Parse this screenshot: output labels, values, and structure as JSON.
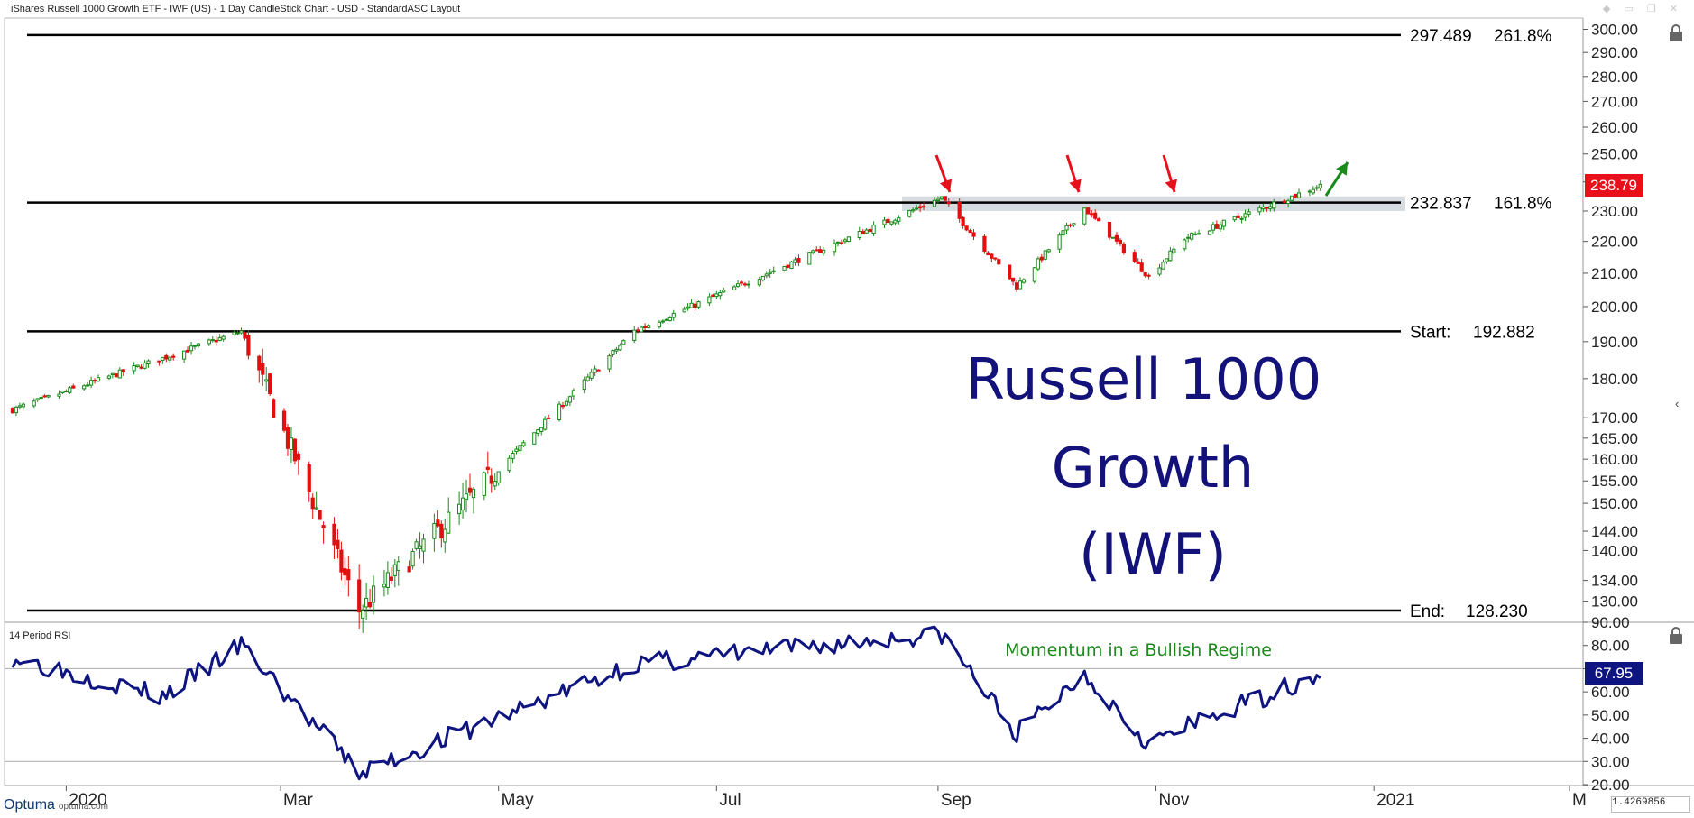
{
  "header": {
    "title": "iShares Russell 1000 Growth ETF - IWF (US) - 1 Day CandleStick Chart - USD - StandardASC Layout"
  },
  "colors": {
    "up": "#1a8a1a",
    "down": "#e01010",
    "rsi": "#0f1580",
    "title": "#12127a",
    "price_tag": "#e8101a",
    "rsi_tag": "#0f1580",
    "annotation_green": "#1a8a1a",
    "arrow_red": "#e8101a"
  },
  "icons": [
    "lock-icon",
    "collapse-arrow-icon",
    "optuma-logo-icon"
  ],
  "branding": {
    "logo": "Optuma",
    "site": "optuma.com"
  },
  "zoom_field": {
    "value": "1.4269856"
  },
  "chart_data": [
    {
      "type": "candlestick",
      "title_lines": [
        "Russell 1000",
        "Growth",
        "(IWF)"
      ],
      "y_scale": "log",
      "ylim": [
        125,
        301
      ],
      "y_ticks": [
        "300.00",
        "290.00",
        "280.00",
        "270.00",
        "260.00",
        "250.00",
        "240.00",
        "230.00",
        "220.00",
        "210.00",
        "200.00",
        "190.00",
        "180.00",
        "170.00",
        "165.00",
        "160.00",
        "155.00",
        "150.00",
        "144.00",
        "140.00",
        "134.00",
        "130.00"
      ],
      "x_ticks": [
        "2020",
        "Mar",
        "May",
        "Jul",
        "Sep",
        "Nov",
        "2021",
        "M"
      ],
      "current_price": "238.79",
      "levels": [
        {
          "value": 297.489,
          "label": "297.489",
          "tag": "261.8%"
        },
        {
          "value": 232.837,
          "label": "232.837",
          "tag": "161.8%"
        },
        {
          "value": 192.882,
          "label": "192.882",
          "tag": "Start:"
        },
        {
          "value": 128.23,
          "label": "128.230",
          "tag": "End:"
        }
      ],
      "resistance_zone": [
        230,
        235
      ],
      "key_closes": [
        {
          "date": "2019-12-17",
          "close": 172
        },
        {
          "date": "2020-02-19",
          "close": 192.9
        },
        {
          "date": "2020-03-23",
          "close": 128.23
        },
        {
          "date": "2020-06-08",
          "close": 193
        },
        {
          "date": "2020-09-02",
          "close": 234.5
        },
        {
          "date": "2020-09-23",
          "close": 206
        },
        {
          "date": "2020-10-12",
          "close": 231
        },
        {
          "date": "2020-10-30",
          "close": 209
        },
        {
          "date": "2020-11-09",
          "close": 221
        },
        {
          "date": "2020-12-17",
          "close": 238.79
        }
      ]
    },
    {
      "type": "line",
      "name": "14 Period RSI",
      "ylim": [
        20,
        90
      ],
      "y_ticks": [
        "90.00",
        "80.00",
        "70.00",
        "60.00",
        "50.00",
        "40.00",
        "30.00",
        "20.00"
      ],
      "reference_lines": [
        70,
        30
      ],
      "current_value": "67.95",
      "annotation": "Momentum in a Bullish Regime",
      "key_values": [
        {
          "date": "2019-12-17",
          "value": 75
        },
        {
          "date": "2020-01-28",
          "value": 58
        },
        {
          "date": "2020-02-19",
          "value": 80
        },
        {
          "date": "2020-03-23",
          "value": 25
        },
        {
          "date": "2020-06-08",
          "value": 72
        },
        {
          "date": "2020-09-02",
          "value": 85
        },
        {
          "date": "2020-09-23",
          "value": 42
        },
        {
          "date": "2020-10-12",
          "value": 68
        },
        {
          "date": "2020-10-30",
          "value": 38
        },
        {
          "date": "2020-12-17",
          "value": 67.95
        }
      ]
    }
  ]
}
